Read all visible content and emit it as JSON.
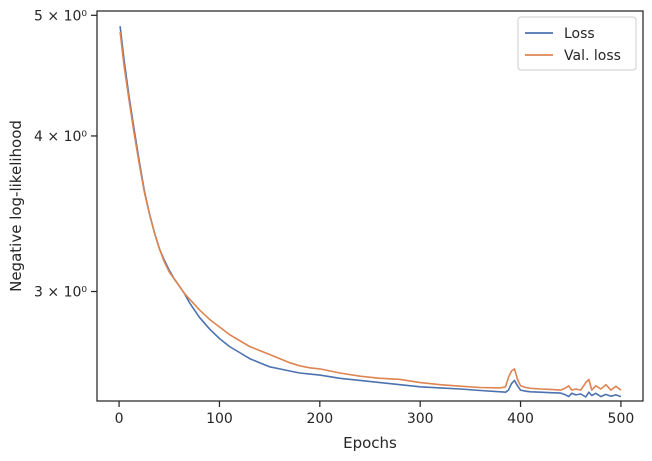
{
  "chart_data": {
    "type": "line",
    "title": "",
    "xlabel": "Epochs",
    "ylabel": "Negative log-likelihood",
    "xlim": [
      -22,
      522
    ],
    "ylim": [
      2.45,
      5.04
    ],
    "yscale": "log",
    "grid": false,
    "legend_position": "top-right",
    "x_ticks": [
      0,
      100,
      200,
      300,
      400,
      500
    ],
    "x_tick_labels": [
      "0",
      "100",
      "200",
      "300",
      "400",
      "500"
    ],
    "y_ticks": [
      3,
      4,
      5
    ],
    "y_tick_labels": [
      "3 × 10⁰",
      "4 × 10⁰",
      "5 × 10⁰"
    ],
    "series": [
      {
        "name": "Loss",
        "color": "#4c72b0",
        "x": [
          1,
          5,
          10,
          15,
          20,
          25,
          30,
          35,
          40,
          45,
          50,
          55,
          60,
          65,
          70,
          80,
          90,
          100,
          110,
          120,
          130,
          140,
          150,
          160,
          170,
          180,
          190,
          200,
          220,
          240,
          260,
          280,
          300,
          320,
          340,
          360,
          380,
          385,
          388,
          391,
          394,
          397,
          400,
          405,
          410,
          420,
          430,
          440,
          445,
          448,
          451,
          455,
          460,
          465,
          468,
          471,
          475,
          480,
          485,
          490,
          495,
          500
        ],
        "y": [
          4.9,
          4.6,
          4.3,
          4.05,
          3.82,
          3.62,
          3.47,
          3.35,
          3.25,
          3.18,
          3.12,
          3.07,
          3.03,
          2.99,
          2.94,
          2.86,
          2.8,
          2.75,
          2.71,
          2.68,
          2.65,
          2.63,
          2.61,
          2.6,
          2.59,
          2.58,
          2.575,
          2.57,
          2.555,
          2.545,
          2.535,
          2.525,
          2.515,
          2.51,
          2.505,
          2.498,
          2.492,
          2.49,
          2.5,
          2.53,
          2.545,
          2.52,
          2.5,
          2.495,
          2.492,
          2.49,
          2.488,
          2.486,
          2.478,
          2.47,
          2.485,
          2.478,
          2.482,
          2.468,
          2.49,
          2.475,
          2.485,
          2.47,
          2.48,
          2.472,
          2.478,
          2.47
        ]
      },
      {
        "name": "Val. loss",
        "color": "#dd8452",
        "x": [
          1,
          5,
          10,
          15,
          20,
          25,
          30,
          35,
          40,
          45,
          50,
          55,
          60,
          65,
          70,
          80,
          90,
          100,
          110,
          120,
          130,
          140,
          150,
          160,
          170,
          180,
          190,
          200,
          220,
          240,
          260,
          280,
          300,
          320,
          340,
          360,
          380,
          385,
          388,
          391,
          394,
          397,
          400,
          405,
          410,
          420,
          430,
          440,
          445,
          448,
          451,
          455,
          460,
          465,
          468,
          471,
          475,
          480,
          485,
          490,
          495,
          500
        ],
        "y": [
          4.85,
          4.55,
          4.27,
          4.02,
          3.8,
          3.61,
          3.47,
          3.35,
          3.25,
          3.17,
          3.11,
          3.07,
          3.03,
          2.99,
          2.96,
          2.9,
          2.85,
          2.81,
          2.77,
          2.74,
          2.71,
          2.69,
          2.67,
          2.65,
          2.63,
          2.615,
          2.605,
          2.6,
          2.58,
          2.565,
          2.555,
          2.55,
          2.535,
          2.525,
          2.518,
          2.512,
          2.51,
          2.515,
          2.56,
          2.59,
          2.6,
          2.55,
          2.52,
          2.512,
          2.508,
          2.505,
          2.503,
          2.5,
          2.51,
          2.52,
          2.5,
          2.505,
          2.5,
          2.535,
          2.55,
          2.5,
          2.52,
          2.505,
          2.525,
          2.5,
          2.518,
          2.5
        ]
      }
    ]
  }
}
